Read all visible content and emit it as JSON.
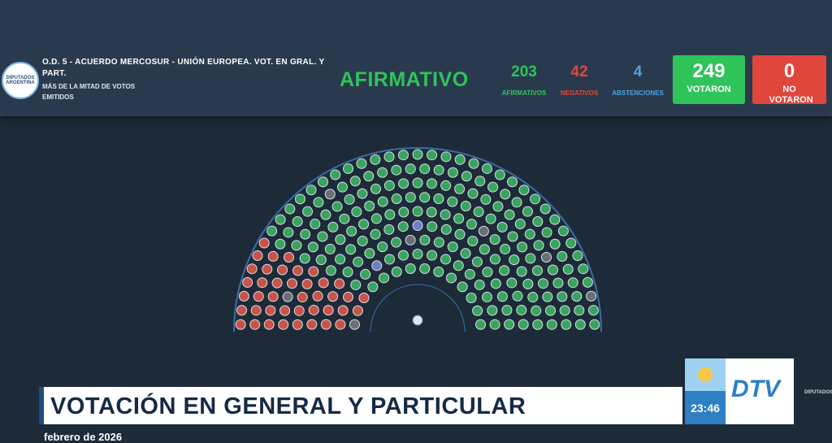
{
  "header": {
    "logo": "DIPUTADOS ARGENTINA",
    "title": "O.D. 5 - ACUERDO MERCOSUR - UNIÓN EUROPEA. VOT. EN GRAL. Y PART.",
    "subtitle": "MÁS DE LA MITAD DE VOTOS EMITIDOS",
    "result": "AFIRMATIVO"
  },
  "counts": {
    "afirmativos": {
      "value": "203",
      "label": "AFIRMATIVOS"
    },
    "negativos": {
      "value": "42",
      "label": "NEGATIVOS"
    },
    "abstenciones": {
      "value": "4",
      "label": "ABSTENCIONES"
    },
    "votaron": {
      "value": "249",
      "label": "VOTARON"
    },
    "no_votaron": {
      "value": "0",
      "label": "NO VOTARON"
    }
  },
  "lower_third": {
    "title": "VOTACIÓN EN GENERAL Y PARTICULAR",
    "date": "febrero de 2026",
    "time": "23:46",
    "channel": "DTV",
    "corner_logo": "DIPUTADOS"
  }
}
